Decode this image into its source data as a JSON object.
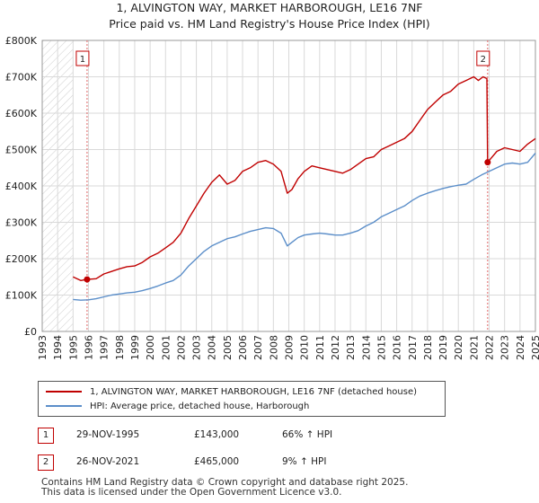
{
  "chart_data": {
    "type": "line",
    "title": "1, ALVINGTON WAY, MARKET HARBOROUGH, LE16 7NF",
    "subtitle": "Price paid vs. HM Land Registry's House Price Index (HPI)",
    "xlim": [
      1993,
      2025
    ],
    "ylim": [
      0,
      800000
    ],
    "x_ticks": [
      1993,
      1994,
      1995,
      1996,
      1997,
      1998,
      1999,
      2000,
      2001,
      2002,
      2003,
      2004,
      2005,
      2006,
      2007,
      2008,
      2009,
      2010,
      2011,
      2012,
      2013,
      2014,
      2015,
      2016,
      2017,
      2018,
      2019,
      2020,
      2021,
      2022,
      2023,
      2024,
      2025
    ],
    "x_tick_labels": [
      "1993",
      "1994",
      "1995",
      "1996",
      "1997",
      "1998",
      "1999",
      "2000",
      "2001",
      "2002",
      "2003",
      "2004",
      "2005",
      "2006",
      "2007",
      "2008",
      "2009",
      "2010",
      "2011",
      "2012",
      "2013",
      "2014",
      "2015",
      "2016",
      "2017",
      "2018",
      "2019",
      "2020",
      "2021",
      "2022",
      "2023",
      "2024",
      "2025"
    ],
    "y_ticks": [
      0,
      100000,
      200000,
      300000,
      400000,
      500000,
      600000,
      700000,
      800000
    ],
    "y_tick_labels": [
      "£0",
      "£100K",
      "£200K",
      "£300K",
      "£400K",
      "£500K",
      "£600K",
      "£700K",
      "£800K"
    ],
    "grid": true,
    "data_start": 1995.0,
    "series": [
      {
        "name": "1, ALVINGTON WAY, MARKET HARBOROUGH, LE16 7NF (detached house)",
        "color": "#c00000",
        "x": [
          1995.0,
          1995.5,
          1995.91,
          1996.5,
          1997.0,
          1997.5,
          1998.0,
          1998.5,
          1999.0,
          1999.5,
          2000.0,
          2000.5,
          2001.0,
          2001.5,
          2002.0,
          2002.5,
          2003.0,
          2003.5,
          2004.0,
          2004.5,
          2005.0,
          2005.5,
          2006.0,
          2006.5,
          2007.0,
          2007.5,
          2008.0,
          2008.5,
          2008.9,
          2009.2,
          2009.6,
          2010.0,
          2010.5,
          2011.0,
          2011.5,
          2012.0,
          2012.5,
          2013.0,
          2013.5,
          2014.0,
          2014.5,
          2015.0,
          2015.5,
          2016.0,
          2016.5,
          2017.0,
          2017.5,
          2018.0,
          2018.5,
          2019.0,
          2019.5,
          2020.0,
          2020.5,
          2021.0,
          2021.3,
          2021.6,
          2021.85,
          2021.9,
          2022.2,
          2022.5,
          2023.0,
          2023.5,
          2024.0,
          2024.5,
          2025.0
        ],
        "values": [
          150000,
          140000,
          143000,
          145000,
          158000,
          165000,
          172000,
          178000,
          180000,
          190000,
          205000,
          215000,
          230000,
          245000,
          270000,
          310000,
          345000,
          380000,
          410000,
          430000,
          405000,
          415000,
          440000,
          450000,
          465000,
          470000,
          460000,
          440000,
          380000,
          390000,
          420000,
          440000,
          455000,
          450000,
          445000,
          440000,
          435000,
          445000,
          460000,
          475000,
          480000,
          500000,
          510000,
          520000,
          530000,
          550000,
          580000,
          610000,
          630000,
          650000,
          660000,
          680000,
          690000,
          700000,
          690000,
          700000,
          695000,
          465000,
          480000,
          495000,
          505000,
          500000,
          495000,
          515000,
          530000
        ]
      },
      {
        "name": "HPI: Average price, detached house, Harborough",
        "color": "#5b8ec9",
        "x": [
          1995.0,
          1995.5,
          1996.0,
          1996.5,
          1997.0,
          1997.5,
          1998.0,
          1998.5,
          1999.0,
          1999.5,
          2000.0,
          2000.5,
          2001.0,
          2001.5,
          2002.0,
          2002.5,
          2003.0,
          2003.5,
          2004.0,
          2004.5,
          2005.0,
          2005.5,
          2006.0,
          2006.5,
          2007.0,
          2007.5,
          2008.0,
          2008.5,
          2008.9,
          2009.2,
          2009.6,
          2010.0,
          2010.5,
          2011.0,
          2011.5,
          2012.0,
          2012.5,
          2013.0,
          2013.5,
          2014.0,
          2014.5,
          2015.0,
          2015.5,
          2016.0,
          2016.5,
          2017.0,
          2017.5,
          2018.0,
          2018.5,
          2019.0,
          2019.5,
          2020.0,
          2020.5,
          2021.0,
          2021.5,
          2022.0,
          2022.5,
          2023.0,
          2023.5,
          2024.0,
          2024.5,
          2025.0
        ],
        "values": [
          88000,
          86000,
          87000,
          90000,
          95000,
          100000,
          103000,
          106000,
          108000,
          112000,
          118000,
          125000,
          133000,
          140000,
          155000,
          180000,
          200000,
          220000,
          235000,
          245000,
          255000,
          260000,
          268000,
          275000,
          280000,
          285000,
          283000,
          270000,
          235000,
          245000,
          258000,
          265000,
          268000,
          270000,
          268000,
          265000,
          265000,
          270000,
          277000,
          290000,
          300000,
          315000,
          325000,
          335000,
          345000,
          360000,
          372000,
          380000,
          387000,
          393000,
          398000,
          402000,
          405000,
          418000,
          430000,
          440000,
          450000,
          460000,
          463000,
          460000,
          465000,
          490000
        ]
      }
    ],
    "markers": [
      {
        "label": "1",
        "x": 1995.91,
        "y": 143000
      },
      {
        "label": "2",
        "x": 2021.9,
        "y": 465000
      }
    ],
    "legend_position": "below"
  },
  "legend": {
    "property_label": "1, ALVINGTON WAY, MARKET HARBOROUGH, LE16 7NF (detached house)",
    "hpi_label": "HPI: Average price, detached house, Harborough"
  },
  "sales": [
    {
      "num": "1",
      "date": "29-NOV-1995",
      "price": "£143,000",
      "hpi": "66% ↑ HPI"
    },
    {
      "num": "2",
      "date": "26-NOV-2021",
      "price": "£465,000",
      "hpi": "9% ↑ HPI"
    }
  ],
  "footer": {
    "line1": "Contains HM Land Registry data © Crown copyright and database right 2025.",
    "line2": "This data is licensed under the Open Government Licence v3.0."
  },
  "colors": {
    "property": "#c00000",
    "hpi": "#5b8ec9",
    "grid": "#d9d9d9",
    "hatch": "#cccccc"
  }
}
